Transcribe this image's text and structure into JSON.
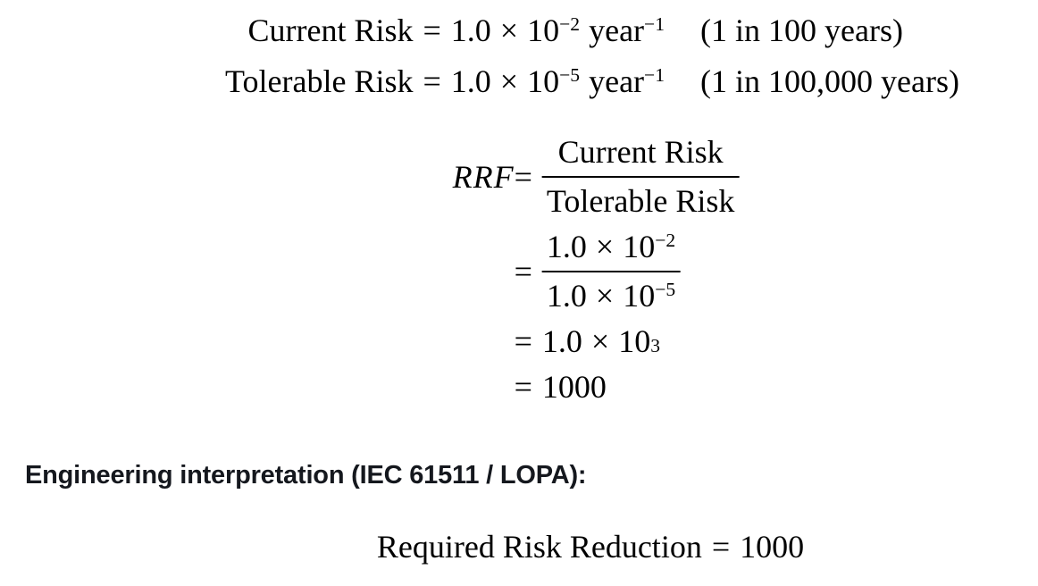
{
  "math": {
    "equals": "=",
    "times": "×",
    "base": "10",
    "given": [
      {
        "name": "Current Risk",
        "coeff": "1.0",
        "exp": "−2",
        "unit": "year",
        "unit_exp": "−1",
        "note": "(1 in 100 years)"
      },
      {
        "name": "Tolerable Risk",
        "coeff": "1.0",
        "exp": "−5",
        "unit": "year",
        "unit_exp": "−1",
        "note": "(1 in 100,000 years)"
      }
    ],
    "derivation": {
      "symbol": "RRF",
      "frac_symbolic": {
        "num": "Current Risk",
        "den": "Tolerable Risk"
      },
      "frac_numeric": {
        "num_coeff": "1.0",
        "num_exp": "−2",
        "den_coeff": "1.0",
        "den_exp": "−5"
      },
      "sci_result": {
        "coeff": "1.0",
        "exp": "3"
      },
      "final_result": "1000"
    }
  },
  "interpretation": {
    "heading": "Engineering interpretation (IEC 61511 / LOPA):",
    "conclusion": {
      "label": "Required Risk Reduction",
      "value": "1000"
    }
  }
}
